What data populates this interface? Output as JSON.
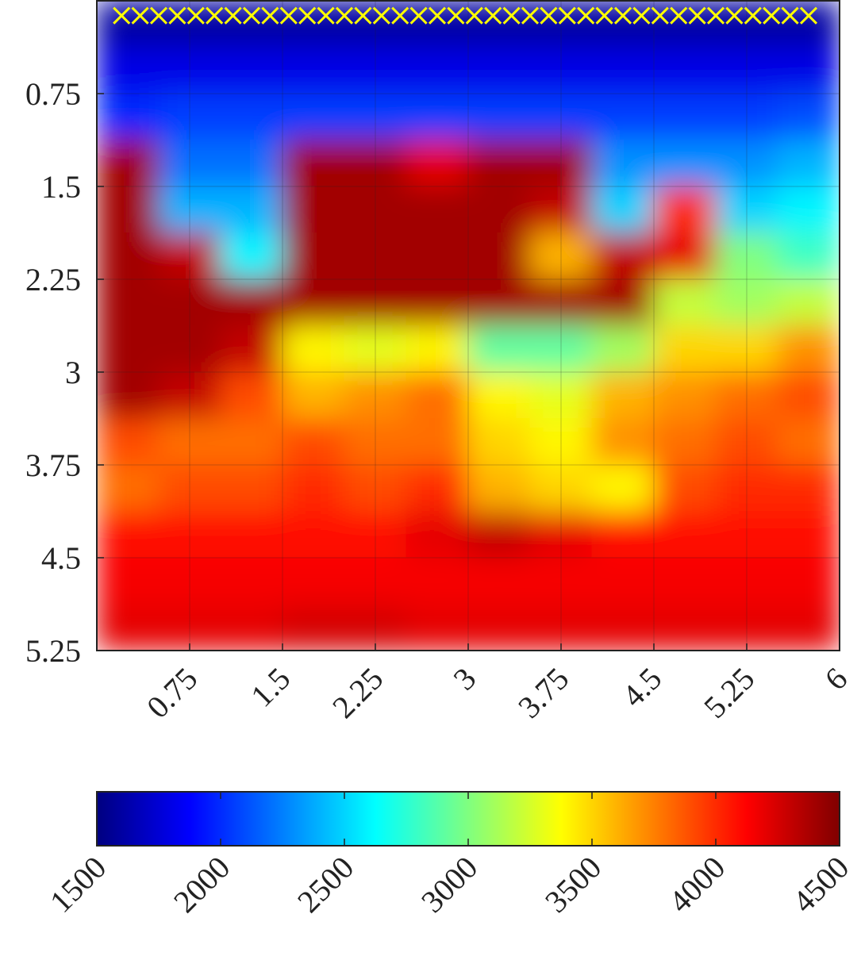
{
  "chart_data": {
    "type": "heatmap",
    "colormap": "jet",
    "grid": true,
    "y_reversed": true,
    "xlim": [
      0,
      6
    ],
    "ylim": [
      0,
      5.25
    ],
    "xticks": [
      0.75,
      1.5,
      2.25,
      3,
      3.75,
      4.5,
      5.25,
      6
    ],
    "yticks": [
      0.75,
      1.5,
      2.25,
      3,
      3.75,
      4.5,
      5.25
    ],
    "clim": [
      1500,
      4500
    ],
    "cticks": [
      1500,
      2000,
      2500,
      3000,
      3500,
      4000,
      4500
    ],
    "z": [
      [
        1600,
        1600,
        1600,
        1600,
        1600,
        1600,
        1600,
        1600,
        1600,
        1600,
        1600,
        1600
      ],
      [
        1800,
        1800,
        1800,
        1800,
        1800,
        1800,
        1800,
        1800,
        1800,
        1800,
        1800,
        1800
      ],
      [
        2000,
        2050,
        2050,
        2050,
        2050,
        2050,
        2050,
        2050,
        2050,
        2050,
        2050,
        2100
      ],
      [
        4400,
        2200,
        2200,
        4400,
        4400,
        4200,
        4400,
        4400,
        2300,
        2300,
        2300,
        2400
      ],
      [
        4400,
        2400,
        2400,
        4400,
        4400,
        4400,
        4400,
        4300,
        2500,
        4000,
        2500,
        2600
      ],
      [
        4400,
        4300,
        2600,
        4400,
        4400,
        4400,
        4400,
        3600,
        4300,
        4200,
        3000,
        2800
      ],
      [
        4400,
        4400,
        4400,
        4400,
        4400,
        4400,
        4400,
        4400,
        4400,
        3200,
        3100,
        3200
      ],
      [
        4400,
        4400,
        4300,
        3400,
        3300,
        3400,
        2900,
        2900,
        3100,
        3500,
        3500,
        3700
      ],
      [
        4400,
        4300,
        3900,
        3600,
        3700,
        3800,
        3400,
        3300,
        3600,
        3700,
        3800,
        3900
      ],
      [
        3900,
        3800,
        3800,
        3900,
        3800,
        3800,
        3500,
        3400,
        3700,
        3800,
        3900,
        3800
      ],
      [
        3800,
        3900,
        3900,
        4000,
        3900,
        4000,
        3600,
        3500,
        3400,
        3900,
        4000,
        4000
      ],
      [
        4100,
        4100,
        4100,
        4100,
        4100,
        4200,
        4300,
        4200,
        4100,
        4100,
        4100,
        4100
      ],
      [
        4150,
        4150,
        4150,
        4150,
        4150,
        4150,
        4150,
        4150,
        4150,
        4150,
        4150,
        4150
      ],
      [
        4200,
        4200,
        4200,
        4250,
        4250,
        4200,
        4200,
        4200,
        4200,
        4200,
        4200,
        4200
      ]
    ],
    "markers": {
      "color": "#ffff00",
      "y": 0.12,
      "x": [
        0.2,
        0.35,
        0.5,
        0.65,
        0.8,
        0.95,
        1.1,
        1.25,
        1.4,
        1.55,
        1.7,
        1.85,
        2.0,
        2.15,
        2.3,
        2.45,
        2.6,
        2.75,
        2.9,
        3.05,
        3.2,
        3.35,
        3.5,
        3.65,
        3.8,
        3.95,
        4.1,
        4.25,
        4.4,
        4.55,
        4.7,
        4.85,
        5.0,
        5.15,
        5.3,
        5.45,
        5.6,
        5.75
      ]
    }
  }
}
